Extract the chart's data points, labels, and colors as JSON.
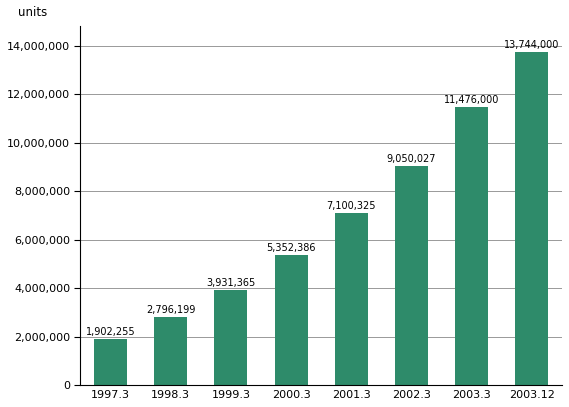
{
  "categories": [
    "1997.3",
    "1998.3",
    "1999.3",
    "2000.3",
    "2001.3",
    "2002.3",
    "2003.3",
    "2003.12"
  ],
  "values": [
    1902255,
    2796199,
    3931365,
    5352386,
    7100325,
    9050027,
    11476000,
    13744000
  ],
  "labels": [
    "1,902,255",
    "2,796,199",
    "3,931,365",
    "5,352,386",
    "7,100,325",
    "9,050,027",
    "11,476,000",
    "13,744,000"
  ],
  "bar_color": "#2e8b6a",
  "ylim": [
    0,
    14800000
  ],
  "yticks": [
    0,
    2000000,
    4000000,
    6000000,
    8000000,
    10000000,
    12000000,
    14000000
  ],
  "ylabel": "units",
  "background_color": "#ffffff",
  "grid_color": "#999999",
  "figsize": [
    5.69,
    4.07
  ],
  "dpi": 100
}
